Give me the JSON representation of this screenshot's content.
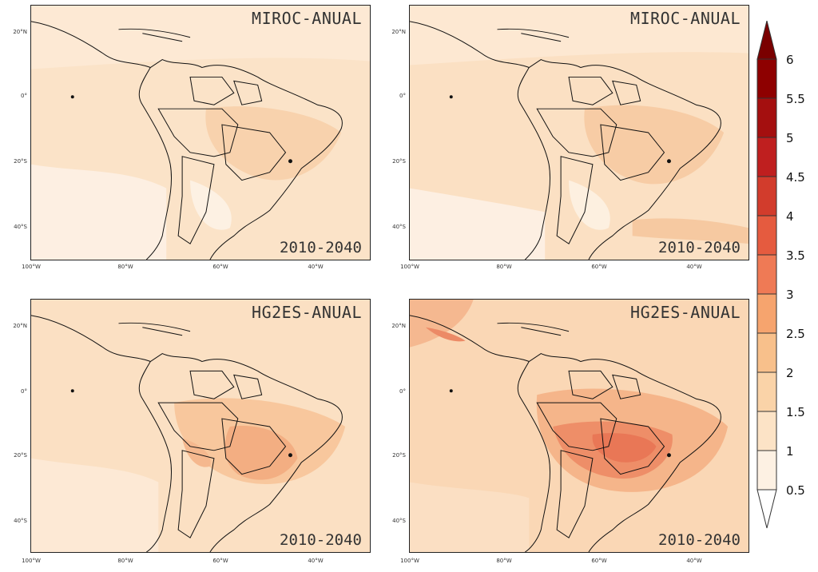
{
  "panels": [
    {
      "model": "MIROC-ANUAL",
      "period": "2010-2040"
    },
    {
      "model": "MIROC-ANUAL",
      "period": "2010-2040"
    },
    {
      "model": "HG2ES-ANUAL",
      "period": "2010-2040"
    },
    {
      "model": "HG2ES-ANUAL",
      "period": "2010-2040"
    }
  ],
  "lat_ticks": [
    "20°N",
    "0°",
    "20°S",
    "40°S"
  ],
  "lon_ticks": [
    "100°W",
    "80°W",
    "60°W",
    "40°W"
  ],
  "colorbar": {
    "labels": [
      "6",
      "5.5",
      "5",
      "4.5",
      "4",
      "3.5",
      "3",
      "2.5",
      "2",
      "1.5",
      "1",
      "0.5"
    ],
    "colors": [
      "#7a0000",
      "#8e0000",
      "#a40f0f",
      "#bf1f1f",
      "#d23c2c",
      "#e55b3f",
      "#ef7a55",
      "#f6a46e",
      "#f8c08b",
      "#fad3a8",
      "#fce3c6",
      "#fdf1e3",
      "#ffffff"
    ]
  }
}
